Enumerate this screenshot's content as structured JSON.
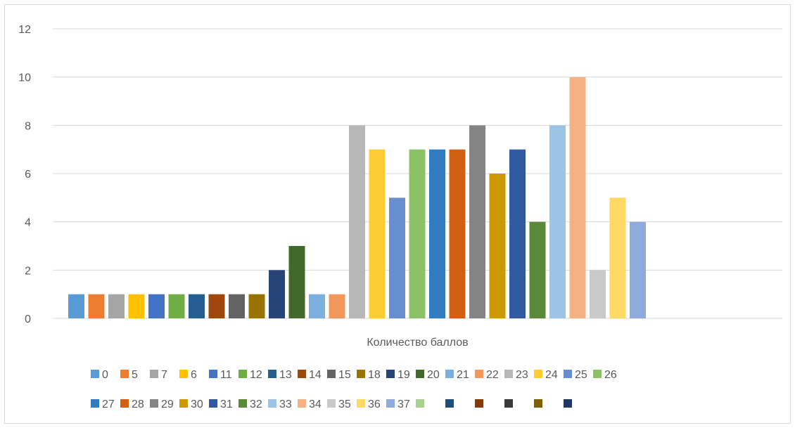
{
  "chart_data": {
    "type": "bar",
    "categories": [
      "Количество баллов"
    ],
    "ylim": [
      0,
      12
    ],
    "yticks": [
      0,
      2,
      4,
      6,
      8,
      10,
      12
    ],
    "grid": true,
    "legend_position": "bottom",
    "series": [
      {
        "name": "0",
        "value": 1,
        "color": "#5B9BD5"
      },
      {
        "name": "5",
        "value": 1,
        "color": "#ED7D31"
      },
      {
        "name": "7",
        "value": 1,
        "color": "#A5A5A5"
      },
      {
        "name": "6",
        "value": 1,
        "color": "#FFC000"
      },
      {
        "name": "11",
        "value": 1,
        "color": "#4472C4"
      },
      {
        "name": "12",
        "value": 1,
        "color": "#70AD47"
      },
      {
        "name": "13",
        "value": 1,
        "color": "#255E91"
      },
      {
        "name": "14",
        "value": 1,
        "color": "#9E480E"
      },
      {
        "name": "15",
        "value": 1,
        "color": "#636363"
      },
      {
        "name": "18",
        "value": 1,
        "color": "#997300"
      },
      {
        "name": "19",
        "value": 2,
        "color": "#264478"
      },
      {
        "name": "20",
        "value": 3,
        "color": "#43682B"
      },
      {
        "name": "21",
        "value": 1,
        "color": "#7CAFDD"
      },
      {
        "name": "22",
        "value": 1,
        "color": "#F1975A"
      },
      {
        "name": "23",
        "value": 8,
        "color": "#B7B7B7"
      },
      {
        "name": "24",
        "value": 7,
        "color": "#FFCD33"
      },
      {
        "name": "25",
        "value": 5,
        "color": "#698ED0"
      },
      {
        "name": "26",
        "value": 7,
        "color": "#8CC168"
      },
      {
        "name": "27",
        "value": 7,
        "color": "#327DC2"
      },
      {
        "name": "28",
        "value": 7,
        "color": "#D26012"
      },
      {
        "name": "29",
        "value": 8,
        "color": "#848484"
      },
      {
        "name": "30",
        "value": 6,
        "color": "#CC9A00"
      },
      {
        "name": "31",
        "value": 7,
        "color": "#335AA1"
      },
      {
        "name": "32",
        "value": 4,
        "color": "#5A8A39"
      },
      {
        "name": "33",
        "value": 8,
        "color": "#9DC3E6"
      },
      {
        "name": "34",
        "value": 10,
        "color": "#F4B183"
      },
      {
        "name": "35",
        "value": 2,
        "color": "#C9C9C9"
      },
      {
        "name": "36",
        "value": 5,
        "color": "#FFD966"
      },
      {
        "name": "37",
        "value": 4,
        "color": "#8FAADC"
      },
      {
        "name": "",
        "value": null,
        "color": "#A9D18E"
      },
      {
        "name": "",
        "value": null,
        "color": "#1F4E79"
      },
      {
        "name": "",
        "value": null,
        "color": "#843C0C"
      },
      {
        "name": "",
        "value": null,
        "color": "#3A3A3A"
      },
      {
        "name": "",
        "value": null,
        "color": "#7F6000"
      },
      {
        "name": "",
        "value": null,
        "color": "#203864"
      }
    ]
  }
}
